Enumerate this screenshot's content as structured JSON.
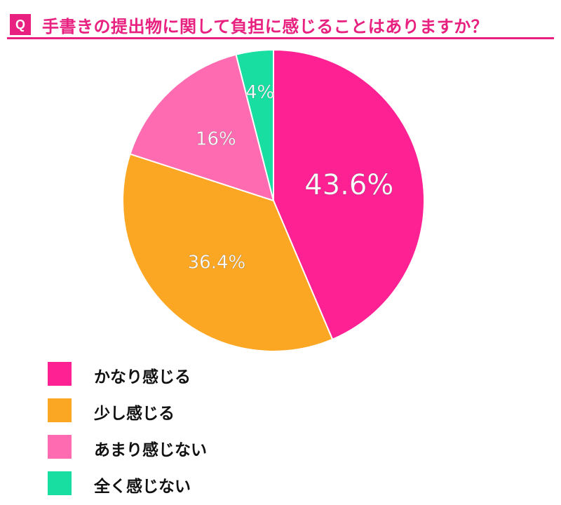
{
  "header": {
    "badge": "Q",
    "title": "手書きの提出物に関して負担に感じることはありますか？",
    "accent_color": "#e8207f"
  },
  "chart_data": {
    "type": "pie",
    "title": "手書きの提出物に関して負担に感じることはありますか？",
    "categories": [
      "かなり感じる",
      "少し感じる",
      "あまり感じない",
      "全く感じない"
    ],
    "values": [
      43.6,
      36.4,
      16,
      4
    ],
    "labels": [
      "43.6%",
      "36.4%",
      "16%",
      "4%"
    ],
    "colors": [
      "#fd2193",
      "#fca723",
      "#fe6bb0",
      "#18dea1"
    ],
    "start_angle": "12 o'clock",
    "direction": "clockwise",
    "legend_position": "bottom-left"
  }
}
